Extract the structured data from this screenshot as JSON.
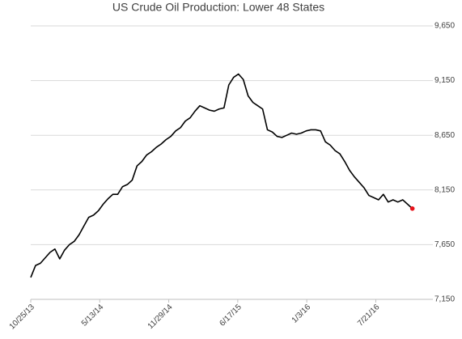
{
  "chart_data": {
    "type": "line",
    "title": "US Crude Oil Production: Lower 48 States",
    "x": [
      "2013-10-25",
      "2013-11-08",
      "2013-11-22",
      "2013-12-06",
      "2013-12-20",
      "2014-01-03",
      "2014-01-17",
      "2014-01-31",
      "2014-02-14",
      "2014-02-28",
      "2014-03-14",
      "2014-03-28",
      "2014-04-11",
      "2014-04-25",
      "2014-05-09",
      "2014-05-23",
      "2014-06-06",
      "2014-06-20",
      "2014-07-04",
      "2014-07-18",
      "2014-08-01",
      "2014-08-15",
      "2014-08-29",
      "2014-09-12",
      "2014-09-26",
      "2014-10-10",
      "2014-10-24",
      "2014-11-07",
      "2014-11-21",
      "2014-12-05",
      "2014-12-19",
      "2015-01-02",
      "2015-01-16",
      "2015-01-30",
      "2015-02-13",
      "2015-02-27",
      "2015-03-13",
      "2015-03-27",
      "2015-04-10",
      "2015-04-24",
      "2015-05-08",
      "2015-05-22",
      "2015-06-05",
      "2015-06-19",
      "2015-07-03",
      "2015-07-17",
      "2015-07-31",
      "2015-08-14",
      "2015-08-28",
      "2015-09-11",
      "2015-09-25",
      "2015-10-09",
      "2015-10-23",
      "2015-11-06",
      "2015-11-20",
      "2015-12-04",
      "2015-12-18",
      "2016-01-01",
      "2016-01-15",
      "2016-01-29",
      "2016-02-12",
      "2016-02-26",
      "2016-03-11",
      "2016-03-25",
      "2016-04-08",
      "2016-04-22",
      "2016-05-06",
      "2016-05-20",
      "2016-06-03",
      "2016-06-17",
      "2016-07-01",
      "2016-07-15",
      "2016-07-29",
      "2016-08-12",
      "2016-08-26",
      "2016-09-09",
      "2016-09-23",
      "2016-10-07",
      "2016-10-21",
      "2016-11-04"
    ],
    "series": [
      {
        "color": "#000000",
        "last_point_color": "#e8131b",
        "values": [
          7350,
          7460,
          7480,
          7530,
          7580,
          7610,
          7520,
          7600,
          7650,
          7680,
          7740,
          7820,
          7900,
          7920,
          7960,
          8020,
          8070,
          8110,
          8110,
          8180,
          8200,
          8240,
          8370,
          8410,
          8470,
          8500,
          8540,
          8570,
          8610,
          8640,
          8690,
          8720,
          8780,
          8810,
          8870,
          8920,
          8900,
          8880,
          8870,
          8890,
          8900,
          9110,
          9180,
          9210,
          9160,
          9010,
          8950,
          8920,
          8890,
          8700,
          8680,
          8640,
          8630,
          8650,
          8670,
          8660,
          8670,
          8690,
          8700,
          8700,
          8690,
          8590,
          8560,
          8510,
          8480,
          8410,
          8330,
          8270,
          8220,
          8170,
          8100,
          8080,
          8060,
          8110,
          8040,
          8060,
          8040,
          8060,
          8020,
          7980
        ]
      }
    ],
    "xlim": [
      "2013-10-25",
      "2016-12-10"
    ],
    "xticks": [
      {
        "value": "2013-10-25",
        "label": "10/25/13"
      },
      {
        "value": "2014-05-13",
        "label": "5/13/14"
      },
      {
        "value": "2014-11-29",
        "label": "11/29/14"
      },
      {
        "value": "2015-06-17",
        "label": "6/17/15"
      },
      {
        "value": "2016-01-03",
        "label": "1/3/16"
      },
      {
        "value": "2016-07-21",
        "label": "7/21/16"
      }
    ],
    "ylim": [
      7150,
      9650
    ],
    "yticks": [
      {
        "value": 7150,
        "label": "7,150"
      },
      {
        "value": 7650,
        "label": "7,650"
      },
      {
        "value": 8150,
        "label": "8,150"
      },
      {
        "value": 8650,
        "label": "8,650"
      },
      {
        "value": 9150,
        "label": "9,150"
      },
      {
        "value": 9650,
        "label": "9,650"
      }
    ],
    "grid": true
  }
}
